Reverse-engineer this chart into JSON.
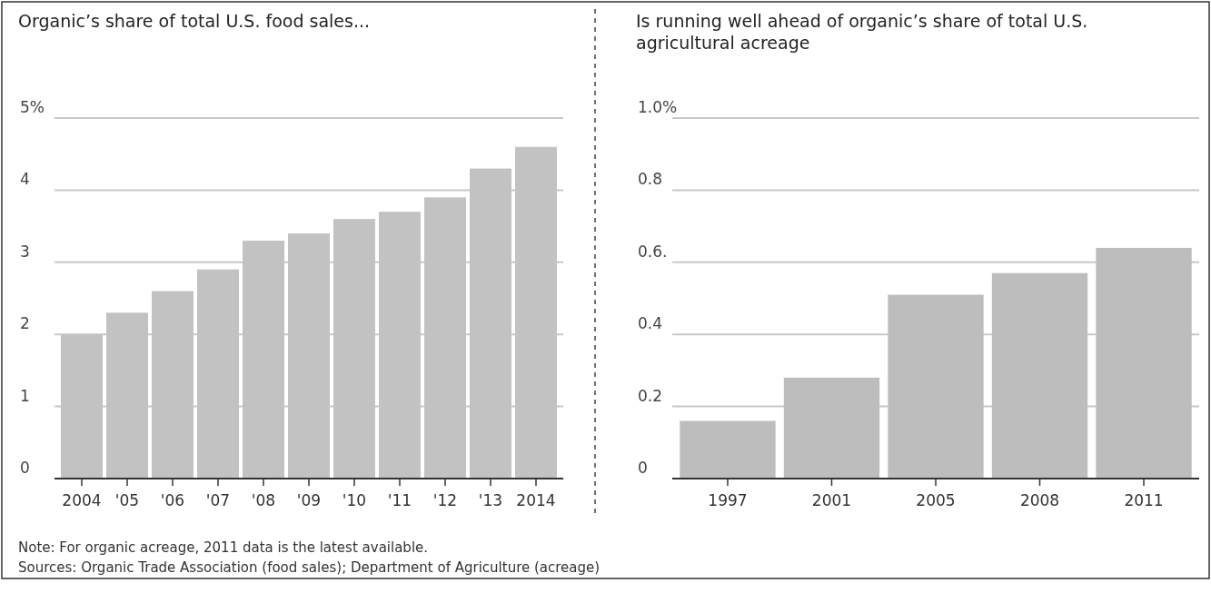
{
  "chart_data": [
    {
      "type": "bar",
      "title": "Organic’s share of total U.S. food sales...",
      "categories": [
        "2004",
        "'05",
        "'06",
        "'07",
        "'08",
        "'09",
        "'10",
        "'11",
        "'12",
        "'13",
        "2014"
      ],
      "values": [
        2.0,
        2.3,
        2.6,
        2.9,
        3.3,
        3.4,
        3.6,
        3.7,
        3.9,
        4.3,
        4.6
      ],
      "color": "#c2c2c2",
      "ylim": [
        0,
        5
      ],
      "yticks": [
        0,
        1,
        2,
        3,
        4,
        {
          "value": 5,
          "label": "5%"
        }
      ],
      "grid": "y"
    },
    {
      "type": "bar",
      "title": "Is running well ahead of organic’s share of total U.S. agricultural acreage",
      "categories": [
        "1997",
        "2001",
        "2005",
        "2008",
        "2011"
      ],
      "values": [
        0.16,
        0.28,
        0.51,
        0.57,
        0.64
      ],
      "color": "#bdbdbd",
      "ylim": [
        0,
        1
      ],
      "yticks": [
        0,
        0.2,
        0.4,
        {
          "value": 0.6,
          "label": "0.6."
        },
        0.8,
        {
          "value": 1,
          "label": "1.0%"
        }
      ],
      "grid": "y",
      "annotations": [
        "Note: For organic acreage, 2011 data is the latest available.",
        "Sources: Organic Trade Association (food sales); Department of Agriculture (acreage)"
      ]
    }
  ]
}
